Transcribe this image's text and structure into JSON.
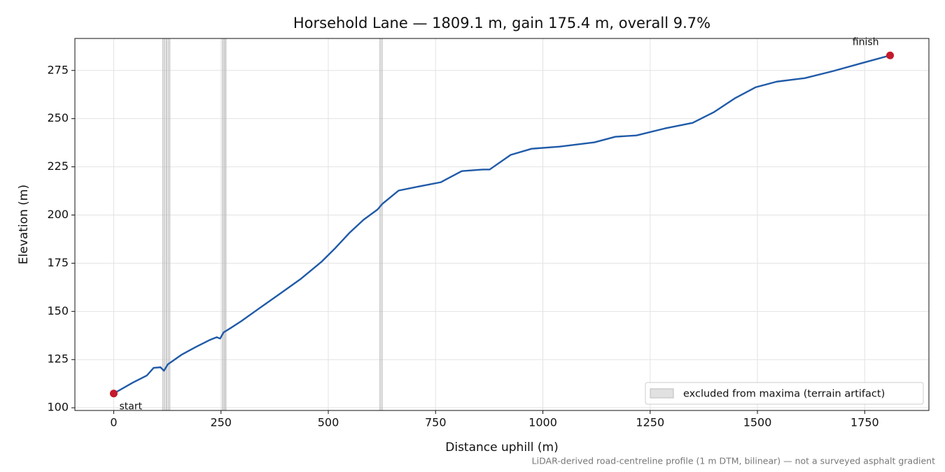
{
  "chart_data": {
    "type": "line",
    "title": "Horsehold Lane — 1809.1 m, gain 175.4 m, overall 9.7%",
    "xlabel": "Distance uphill (m)",
    "ylabel": "Elevation (m)",
    "footnote": "LiDAR-derived road-centreline profile (1 m DTM, bilinear) — not a surveyed asphalt gradient",
    "x": [
      0,
      44,
      77,
      93,
      109,
      117,
      126,
      158,
      191,
      223,
      240,
      248,
      256,
      272,
      297,
      338,
      387,
      435,
      484,
      517,
      550,
      582,
      615,
      626,
      664,
      713,
      762,
      811,
      860,
      876,
      925,
      974,
      1039,
      1120,
      1169,
      1218,
      1284,
      1349,
      1398,
      1447,
      1496,
      1545,
      1610,
      1675,
      1740,
      1809.1
    ],
    "series": [
      {
        "name": "elevation",
        "color": "#1f5aa8",
        "values": [
          107.4,
          113.0,
          116.7,
          120.7,
          121.0,
          119.2,
          122.5,
          127.5,
          131.5,
          135.1,
          136.6,
          135.9,
          139.1,
          141.3,
          144.9,
          151.4,
          159.1,
          166.7,
          175.7,
          183.0,
          190.9,
          197.5,
          202.9,
          205.8,
          212.7,
          214.9,
          217.0,
          222.8,
          223.6,
          223.6,
          231.2,
          234.4,
          235.5,
          237.7,
          240.6,
          241.3,
          244.9,
          247.8,
          253.3,
          260.5,
          266.3,
          269.2,
          271.0,
          274.6,
          278.6,
          282.8
        ]
      }
    ],
    "excluded": {
      "name": "excluded from maxima (terrain artifact)",
      "color": "#bdbdbd",
      "spans": [
        [
          114,
          119
        ],
        [
          122,
          124
        ],
        [
          127,
          131
        ],
        [
          253,
          257
        ],
        [
          259,
          262
        ],
        [
          620,
          626
        ]
      ]
    },
    "markers": [
      {
        "label": "start",
        "x": 0,
        "y": 107.4,
        "color": "#c41a2b"
      },
      {
        "label": "finish",
        "x": 1809.1,
        "y": 282.8,
        "color": "#c41a2b"
      }
    ],
    "xlim": [
      -90.455,
      1899.555
    ],
    "ylim": [
      98.6,
      291.6
    ],
    "xticks": [
      0,
      250,
      500,
      750,
      1000,
      1250,
      1500,
      1750
    ],
    "yticks": [
      100,
      125,
      150,
      175,
      200,
      225,
      250,
      275
    ],
    "grid": true,
    "legend": "lower right"
  }
}
